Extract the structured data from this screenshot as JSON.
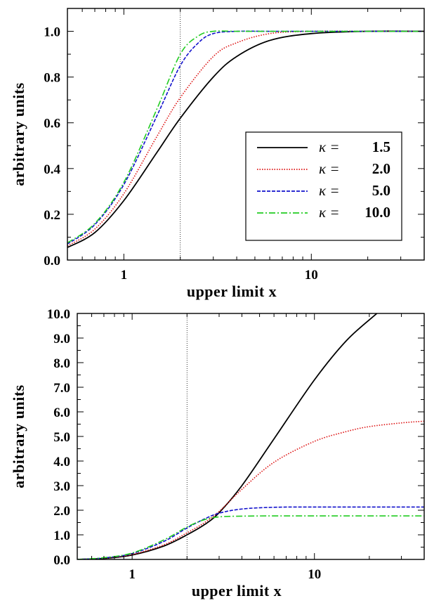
{
  "chart_data": [
    {
      "type": "line",
      "xlabel": "upper limit x",
      "ylabel": "arbitrary units",
      "xscale": "log",
      "xlim": [
        0.5,
        40
      ],
      "ylim": [
        0,
        1.1
      ],
      "xticks": [
        1,
        10
      ],
      "xtick_labels": [
        "1",
        "10"
      ],
      "yticks": [
        0,
        0.2,
        0.4,
        0.6,
        0.8,
        1.0
      ],
      "ytick_labels": [
        "0.0",
        "0.2",
        "0.4",
        "0.6",
        "0.8",
        "1.0"
      ],
      "vline_x": 2,
      "grid": false,
      "legend_position": "center-right",
      "series": [
        {
          "name": "1.5",
          "color": "#000000",
          "style": "solid",
          "x": [
            0.5,
            0.7,
            1.0,
            1.5,
            2.0,
            3.0,
            4.0,
            6.0,
            10.0,
            20.0,
            40.0
          ],
          "y": [
            0.055,
            0.12,
            0.26,
            0.47,
            0.62,
            0.8,
            0.89,
            0.96,
            0.99,
            1.0,
            1.0
          ]
        },
        {
          "name": "2.0",
          "color": "#dd1111",
          "style": "dotted",
          "x": [
            0.5,
            0.7,
            1.0,
            1.5,
            2.0,
            3.0,
            4.0,
            6.0,
            10.0,
            20.0,
            40.0
          ],
          "y": [
            0.062,
            0.135,
            0.29,
            0.54,
            0.71,
            0.89,
            0.95,
            0.99,
            1.0,
            1.0,
            1.0
          ]
        },
        {
          "name": "5.0",
          "color": "#1111cc",
          "style": "dashed",
          "x": [
            0.5,
            0.7,
            1.0,
            1.5,
            2.0,
            2.5,
            3.0,
            4.0,
            6.0,
            10.0,
            40.0
          ],
          "y": [
            0.07,
            0.155,
            0.33,
            0.63,
            0.85,
            0.95,
            0.99,
            1.0,
            1.0,
            1.0,
            1.0
          ]
        },
        {
          "name": "10.0",
          "color": "#22cc22",
          "style": "dashdot",
          "x": [
            0.5,
            0.7,
            1.0,
            1.5,
            2.0,
            2.5,
            3.0,
            4.0,
            6.0,
            10.0,
            40.0
          ],
          "y": [
            0.075,
            0.16,
            0.34,
            0.66,
            0.9,
            0.98,
            1.0,
            1.0,
            1.0,
            1.0,
            1.0
          ]
        }
      ]
    },
    {
      "type": "line",
      "xlabel": "upper limit x",
      "ylabel": "arbitrary units",
      "xscale": "log",
      "xlim": [
        0.5,
        40
      ],
      "ylim": [
        0,
        10
      ],
      "xticks": [
        1,
        10
      ],
      "xtick_labels": [
        "1",
        "10"
      ],
      "yticks": [
        0,
        1,
        2,
        3,
        4,
        5,
        6,
        7,
        8,
        9,
        10
      ],
      "ytick_labels": [
        "0.0",
        "1.0",
        "2.0",
        "3.0",
        "4.0",
        "5.0",
        "6.0",
        "7.0",
        "8.0",
        "9.0",
        "10.0"
      ],
      "vline_x": 2,
      "grid": false,
      "series": [
        {
          "name": "1.5",
          "color": "#000000",
          "style": "solid",
          "x": [
            0.5,
            0.7,
            1.0,
            1.5,
            2.0,
            2.5,
            3.0,
            4.0,
            6.0,
            10.0,
            15.0,
            22.0
          ],
          "y": [
            0.0,
            0.04,
            0.18,
            0.55,
            1.0,
            1.42,
            1.9,
            3.0,
            4.9,
            7.3,
            8.9,
            10.0
          ]
        },
        {
          "name": "2.0",
          "color": "#dd1111",
          "style": "dotted",
          "x": [
            0.5,
            0.7,
            1.0,
            1.5,
            2.0,
            2.5,
            3.0,
            4.0,
            6.0,
            10.0,
            15.0,
            20.0,
            30.0,
            40.0
          ],
          "y": [
            0.0,
            0.05,
            0.2,
            0.6,
            1.08,
            1.5,
            1.95,
            2.85,
            3.95,
            4.8,
            5.2,
            5.4,
            5.55,
            5.62
          ]
        },
        {
          "name": "5.0",
          "color": "#1111cc",
          "style": "dashed",
          "x": [
            0.5,
            0.7,
            1.0,
            1.5,
            2.0,
            2.5,
            3.0,
            4.0,
            6.0,
            10.0,
            40.0
          ],
          "y": [
            0.0,
            0.06,
            0.24,
            0.74,
            1.28,
            1.65,
            1.88,
            2.05,
            2.12,
            2.13,
            2.13
          ]
        },
        {
          "name": "10.0",
          "color": "#22cc22",
          "style": "dashdot",
          "x": [
            0.5,
            0.7,
            1.0,
            1.5,
            2.0,
            2.5,
            3.0,
            4.0,
            6.0,
            10.0,
            40.0
          ],
          "y": [
            0.0,
            0.07,
            0.26,
            0.8,
            1.32,
            1.62,
            1.73,
            1.76,
            1.77,
            1.77,
            1.77
          ]
        }
      ]
    }
  ],
  "legend": {
    "symbol": "κ =",
    "entries": [
      "1.5",
      "2.0",
      "5.0",
      "10.0"
    ]
  }
}
